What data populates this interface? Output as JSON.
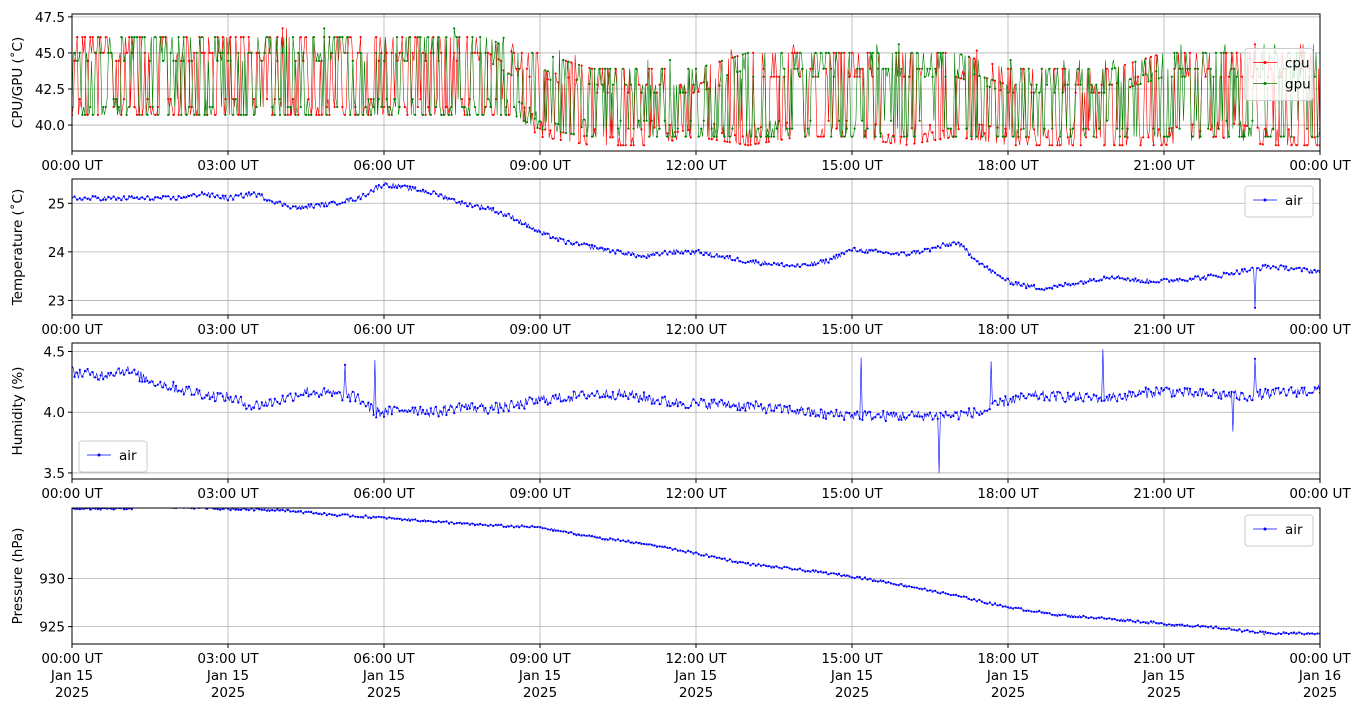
{
  "chart_data": [
    {
      "type": "line",
      "ylabel": "CPU/GPU (˚C)",
      "ylim": [
        38.2,
        47.7
      ],
      "yticks": [
        40.0,
        42.5,
        45.0,
        47.5
      ],
      "ytick_labels": [
        "40.0",
        "42.5",
        "45.0",
        "47.5"
      ],
      "legend_position": "right",
      "grid": true,
      "series": [
        {
          "name": "cpu",
          "color": "#ff0000",
          "x": [
            "00:00",
            "01:00",
            "02:00",
            "03:00",
            "04:00",
            "05:00",
            "06:00",
            "07:00",
            "08:00",
            "08:30",
            "09:00",
            "10:00",
            "11:00",
            "12:00",
            "13:00",
            "14:00",
            "15:00",
            "16:00",
            "17:00",
            "18:00",
            "19:00",
            "20:00",
            "21:00",
            "22:00",
            "23:00",
            "24:00"
          ],
          "low": [
            40.7,
            40.7,
            40.7,
            40.7,
            40.7,
            40.7,
            40.7,
            40.7,
            40.7,
            40.7,
            39.2,
            38.6,
            38.6,
            39.2,
            38.6,
            39.2,
            39.2,
            38.6,
            39.2,
            38.6,
            38.6,
            38.6,
            38.6,
            39.2,
            38.6,
            38.6
          ],
          "high": [
            46.1,
            46.1,
            46.1,
            46.1,
            46.1,
            46.1,
            46.1,
            46.1,
            46.1,
            45.0,
            45.0,
            43.9,
            43.9,
            43.9,
            45.0,
            45.0,
            45.0,
            45.0,
            45.0,
            43.9,
            43.9,
            43.9,
            45.0,
            45.0,
            45.0,
            45.0
          ]
        },
        {
          "name": "gpu",
          "color": "#008000",
          "x": [
            "00:00",
            "01:00",
            "02:00",
            "03:00",
            "04:00",
            "05:00",
            "06:00",
            "07:00",
            "08:00",
            "08:30",
            "09:00",
            "10:00",
            "11:00",
            "12:00",
            "13:00",
            "14:00",
            "15:00",
            "16:00",
            "17:00",
            "18:00",
            "19:00",
            "20:00",
            "21:00",
            "22:00",
            "23:00",
            "24:00"
          ],
          "low": [
            40.7,
            40.7,
            40.7,
            40.7,
            40.7,
            40.7,
            40.7,
            40.7,
            40.7,
            40.7,
            39.7,
            39.2,
            39.2,
            39.2,
            39.2,
            39.2,
            39.2,
            39.2,
            39.2,
            39.2,
            39.2,
            39.2,
            39.2,
            39.2,
            39.2,
            39.2
          ],
          "high": [
            46.1,
            46.1,
            46.1,
            46.1,
            46.1,
            46.1,
            46.1,
            46.1,
            46.1,
            45.0,
            45.0,
            43.9,
            43.9,
            43.9,
            45.0,
            45.0,
            45.0,
            45.0,
            45.0,
            43.9,
            43.9,
            43.9,
            45.0,
            45.0,
            45.0,
            45.0
          ]
        }
      ]
    },
    {
      "type": "line",
      "ylabel": "Temperature (˚C)",
      "ylim": [
        22.7,
        25.5
      ],
      "yticks": [
        23,
        24,
        25
      ],
      "ytick_labels": [
        "23",
        "24",
        "25"
      ],
      "legend_position": "top-right",
      "grid": true,
      "series": [
        {
          "name": "air",
          "color": "#0000ff",
          "x": [
            "00:00",
            "01:00",
            "02:00",
            "02:30",
            "03:00",
            "03:30",
            "04:00",
            "04:20",
            "05:00",
            "05:30",
            "06:00",
            "06:30",
            "07:00",
            "07:30",
            "08:00",
            "08:30",
            "09:00",
            "09:30",
            "10:00",
            "10:30",
            "11:00",
            "11:30",
            "12:00",
            "12:30",
            "13:00",
            "13:30",
            "14:00",
            "14:30",
            "15:00",
            "15:30",
            "16:00",
            "16:30",
            "17:00",
            "17:20",
            "17:40",
            "18:00",
            "18:20",
            "18:40",
            "19:00",
            "19:30",
            "20:00",
            "20:30",
            "21:00",
            "21:30",
            "22:00",
            "22:30",
            "23:00",
            "23:30",
            "24:00"
          ],
          "values": [
            25.1,
            25.1,
            25.1,
            25.2,
            25.1,
            25.2,
            25.0,
            24.9,
            25.0,
            25.1,
            25.4,
            25.3,
            25.2,
            25.0,
            24.9,
            24.7,
            24.4,
            24.2,
            24.1,
            24.0,
            23.9,
            24.0,
            24.0,
            23.9,
            23.8,
            23.75,
            23.7,
            23.8,
            24.05,
            24.0,
            23.95,
            24.05,
            24.2,
            23.9,
            23.6,
            23.4,
            23.3,
            23.25,
            23.3,
            23.4,
            23.5,
            23.4,
            23.4,
            23.45,
            23.5,
            23.6,
            23.7,
            23.65,
            23.6
          ],
          "annotations": [
            {
              "x": "22:45",
              "y": 22.85
            }
          ]
        }
      ]
    },
    {
      "type": "line",
      "ylabel": "Humidity (%)",
      "ylim": [
        3.45,
        4.57
      ],
      "yticks": [
        3.5,
        4.0,
        4.5
      ],
      "ytick_labels": [
        "3.5",
        "4.0",
        "4.5"
      ],
      "legend_position": "bottom-left",
      "grid": true,
      "series": [
        {
          "name": "air",
          "color": "#0000ff",
          "x": [
            "00:00",
            "00:30",
            "01:00",
            "01:30",
            "02:00",
            "02:30",
            "03:00",
            "03:30",
            "04:00",
            "04:30",
            "05:00",
            "05:30",
            "05:50",
            "06:00",
            "06:30",
            "07:00",
            "07:30",
            "08:00",
            "08:30",
            "09:00",
            "09:30",
            "10:00",
            "10:30",
            "11:00",
            "11:30",
            "12:00",
            "12:30",
            "13:00",
            "13:30",
            "14:00",
            "14:30",
            "15:00",
            "15:30",
            "16:00",
            "16:30",
            "17:00",
            "17:30",
            "18:00",
            "18:30",
            "19:00",
            "19:30",
            "20:00",
            "20:30",
            "21:00",
            "21:30",
            "22:00",
            "22:30",
            "23:00",
            "23:30",
            "24:00"
          ],
          "values": [
            4.33,
            4.3,
            4.35,
            4.26,
            4.2,
            4.15,
            4.12,
            4.05,
            4.1,
            4.17,
            4.15,
            4.12,
            4.0,
            4.0,
            4.03,
            4.0,
            4.05,
            4.03,
            4.05,
            4.1,
            4.12,
            4.15,
            4.15,
            4.12,
            4.08,
            4.07,
            4.07,
            4.05,
            4.03,
            4.01,
            3.98,
            3.98,
            3.97,
            3.97,
            3.97,
            3.98,
            4.0,
            4.1,
            4.13,
            4.13,
            4.12,
            4.12,
            4.15,
            4.18,
            4.15,
            4.15,
            4.13,
            4.15,
            4.17,
            4.18
          ],
          "annotations": [
            {
              "x": "05:15",
              "y": 4.39
            },
            {
              "x": "05:50",
              "y": 4.43
            },
            {
              "x": "15:10",
              "y": 4.45
            },
            {
              "x": "16:40",
              "y": 3.5
            },
            {
              "x": "17:40",
              "y": 4.42
            },
            {
              "x": "19:50",
              "y": 4.52
            },
            {
              "x": "22:20",
              "y": 3.84
            },
            {
              "x": "22:45",
              "y": 4.44
            }
          ]
        }
      ]
    },
    {
      "type": "line",
      "ylabel": "Pressure (hPa)",
      "ylim": [
        923.2,
        937.3
      ],
      "yticks": [
        925,
        930
      ],
      "ytick_labels": [
        "925",
        "930"
      ],
      "legend_position": "top-right",
      "grid": true,
      "series": [
        {
          "name": "air",
          "color": "#0000ff",
          "x": [
            "00:00",
            "01:00",
            "01:30",
            "02:00",
            "03:00",
            "04:00",
            "05:00",
            "06:00",
            "07:00",
            "08:00",
            "09:00",
            "10:00",
            "11:00",
            "12:00",
            "13:00",
            "14:00",
            "15:00",
            "16:00",
            "17:00",
            "18:00",
            "19:00",
            "20:00",
            "21:00",
            "22:00",
            "23:00",
            "24:00"
          ],
          "values": [
            937.2,
            937.2,
            937.5,
            937.4,
            937.2,
            937.1,
            936.6,
            936.3,
            935.9,
            935.5,
            935.3,
            934.3,
            933.6,
            932.6,
            931.5,
            930.9,
            930.2,
            929.3,
            928.2,
            927.0,
            926.2,
            925.8,
            925.3,
            924.9,
            924.3,
            924.3
          ],
          "annotations": [
            {
              "x": "22:55",
              "y": 924.1
            }
          ]
        }
      ]
    }
  ],
  "x_axis": {
    "range": [
      "00:00",
      "24:00"
    ],
    "tick_labels": [
      "00:00 UT",
      "03:00 UT",
      "06:00 UT",
      "09:00 UT",
      "12:00 UT",
      "15:00 UT",
      "18:00 UT",
      "21:00 UT",
      "00:00 UT"
    ],
    "date_lines": [
      [
        "Jan 15",
        "2025"
      ],
      [
        "Jan 15",
        "2025"
      ],
      [
        "Jan 15",
        "2025"
      ],
      [
        "Jan 15",
        "2025"
      ],
      [
        "Jan 15",
        "2025"
      ],
      [
        "Jan 15",
        "2025"
      ],
      [
        "Jan 15",
        "2025"
      ],
      [
        "Jan 15",
        "2025"
      ],
      [
        "Jan 16",
        "2025"
      ]
    ]
  }
}
